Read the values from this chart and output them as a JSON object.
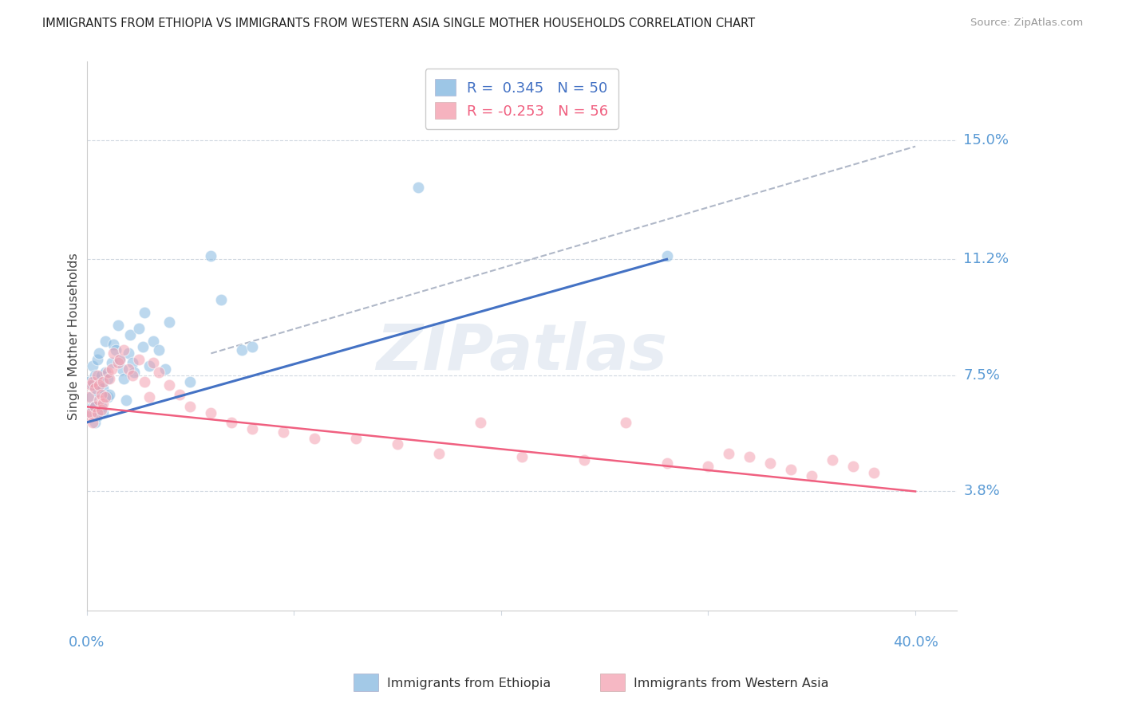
{
  "title": "IMMIGRANTS FROM ETHIOPIA VS IMMIGRANTS FROM WESTERN ASIA SINGLE MOTHER HOUSEHOLDS CORRELATION CHART",
  "source": "Source: ZipAtlas.com",
  "ylabel": "Single Mother Households",
  "yticks": [
    0.038,
    0.075,
    0.112,
    0.15
  ],
  "ytick_labels": [
    "3.8%",
    "7.5%",
    "11.2%",
    "15.0%"
  ],
  "xlim": [
    0.0,
    0.42
  ],
  "ylim": [
    0.0,
    0.175
  ],
  "legend_r1": "R =  0.345",
  "legend_n1": "N = 50",
  "legend_r2": "R = -0.253",
  "legend_n2": "N = 56",
  "blue_scatter_color": "#85b8e0",
  "pink_scatter_color": "#f4a0b0",
  "blue_line_color": "#4472c4",
  "pink_line_color": "#f06080",
  "dashed_line_color": "#b0b8c8",
  "right_label_color": "#5b9bd5",
  "ethiopia_label": "Immigrants from Ethiopia",
  "western_asia_label": "Immigrants from Western Asia",
  "ethiopia_x": [
    0.001,
    0.002,
    0.002,
    0.003,
    0.003,
    0.003,
    0.004,
    0.004,
    0.004,
    0.005,
    0.005,
    0.005,
    0.006,
    0.006,
    0.007,
    0.007,
    0.008,
    0.008,
    0.009,
    0.009,
    0.01,
    0.01,
    0.011,
    0.012,
    0.013,
    0.014,
    0.015,
    0.016,
    0.017,
    0.018,
    0.019,
    0.02,
    0.021,
    0.022,
    0.023,
    0.025,
    0.027,
    0.028,
    0.03,
    0.032,
    0.035,
    0.038,
    0.04,
    0.05,
    0.06,
    0.065,
    0.075,
    0.08,
    0.16,
    0.28
  ],
  "ethiopia_y": [
    0.073,
    0.063,
    0.068,
    0.065,
    0.072,
    0.078,
    0.06,
    0.065,
    0.075,
    0.062,
    0.07,
    0.08,
    0.072,
    0.082,
    0.065,
    0.075,
    0.063,
    0.071,
    0.076,
    0.086,
    0.068,
    0.074,
    0.069,
    0.079,
    0.085,
    0.083,
    0.091,
    0.08,
    0.077,
    0.074,
    0.067,
    0.082,
    0.088,
    0.079,
    0.076,
    0.09,
    0.084,
    0.095,
    0.078,
    0.086,
    0.083,
    0.077,
    0.092,
    0.073,
    0.113,
    0.099,
    0.083,
    0.084,
    0.135,
    0.113
  ],
  "western_x": [
    0.001,
    0.001,
    0.002,
    0.002,
    0.003,
    0.003,
    0.004,
    0.004,
    0.005,
    0.005,
    0.006,
    0.006,
    0.007,
    0.007,
    0.008,
    0.008,
    0.009,
    0.01,
    0.011,
    0.012,
    0.013,
    0.015,
    0.016,
    0.018,
    0.02,
    0.022,
    0.025,
    0.028,
    0.03,
    0.032,
    0.035,
    0.04,
    0.045,
    0.05,
    0.06,
    0.07,
    0.08,
    0.095,
    0.11,
    0.13,
    0.15,
    0.17,
    0.19,
    0.21,
    0.24,
    0.26,
    0.28,
    0.3,
    0.31,
    0.32,
    0.33,
    0.34,
    0.35,
    0.36,
    0.37,
    0.38
  ],
  "western_y": [
    0.062,
    0.068,
    0.063,
    0.072,
    0.06,
    0.073,
    0.065,
    0.071,
    0.063,
    0.075,
    0.067,
    0.072,
    0.064,
    0.069,
    0.066,
    0.073,
    0.068,
    0.076,
    0.074,
    0.077,
    0.082,
    0.079,
    0.08,
    0.083,
    0.077,
    0.075,
    0.08,
    0.073,
    0.068,
    0.079,
    0.076,
    0.072,
    0.069,
    0.065,
    0.063,
    0.06,
    0.058,
    0.057,
    0.055,
    0.055,
    0.053,
    0.05,
    0.06,
    0.049,
    0.048,
    0.06,
    0.047,
    0.046,
    0.05,
    0.049,
    0.047,
    0.045,
    0.043,
    0.048,
    0.046,
    0.044
  ],
  "blue_line_x": [
    0.0,
    0.28
  ],
  "blue_line_y": [
    0.06,
    0.112
  ],
  "pink_line_x": [
    0.0,
    0.4
  ],
  "pink_line_y": [
    0.065,
    0.038
  ],
  "dash_line_x": [
    0.06,
    0.4
  ],
  "dash_line_y": [
    0.082,
    0.148
  ],
  "watermark_text": "ZIPatlas",
  "bg_color": "#ffffff",
  "grid_color": "#d0d8e0"
}
